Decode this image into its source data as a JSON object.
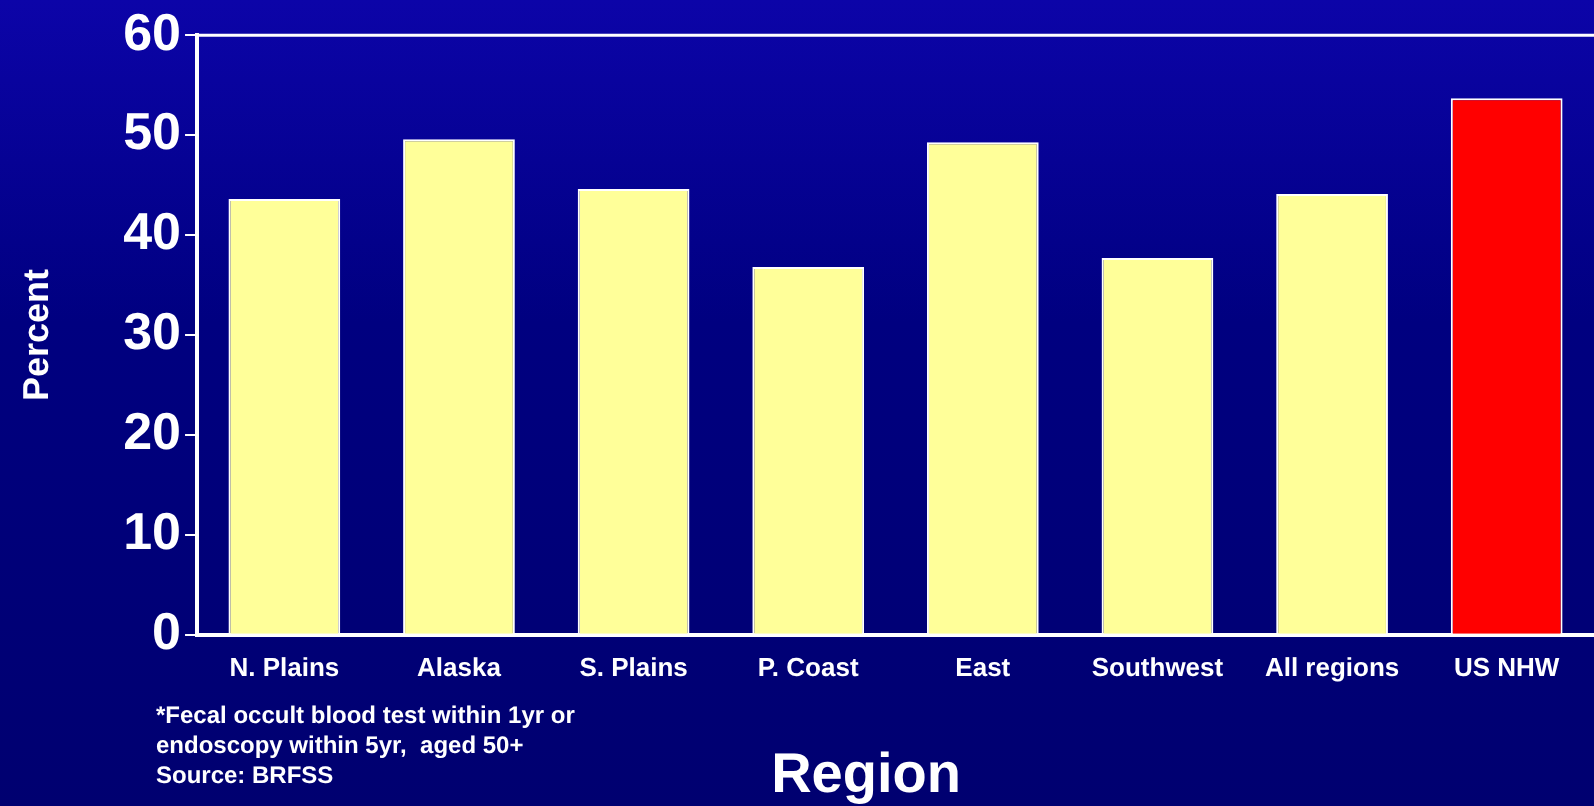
{
  "chart_data": {
    "type": "bar",
    "categories": [
      "N. Plains",
      "Alaska",
      "S. Plains",
      "P. Coast",
      "East",
      "Southwest",
      "All regions",
      "US NHW"
    ],
    "values": [
      43.6,
      49.6,
      44.6,
      36.8,
      49.3,
      37.7,
      44.1,
      53.7
    ],
    "colors": [
      "#ffff99",
      "#ffff99",
      "#ffff99",
      "#ffff99",
      "#ffff99",
      "#ffff99",
      "#ffff99",
      "#ff0000"
    ],
    "xlabel": "Region",
    "ylabel": "Percent",
    "ylim": [
      0,
      60
    ],
    "yticks": [
      0,
      10,
      20,
      30,
      40,
      50,
      60
    ],
    "grid": false,
    "legend": false,
    "annotations": [
      "*Fecal occult blood test within 1yr or",
      "endoscopy within 5yr,  aged 50+",
      "Source: BRFSS"
    ]
  }
}
